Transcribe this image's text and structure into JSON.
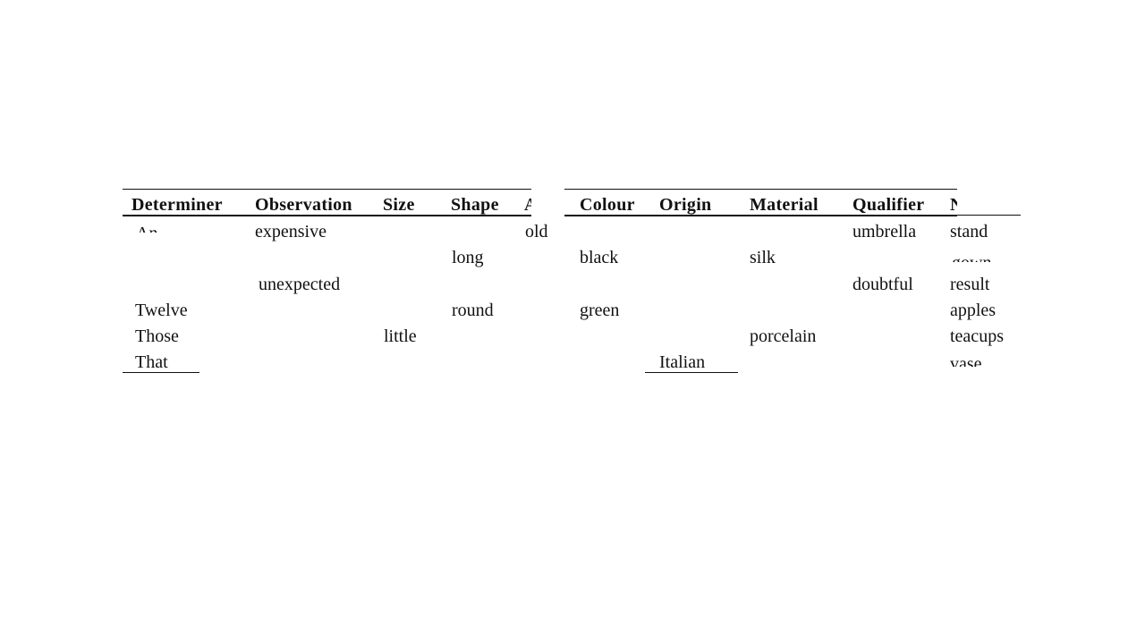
{
  "table": {
    "headers": {
      "determiner": "Determiner",
      "observation": "Observation",
      "size": "Size",
      "shape": "Shape",
      "age": "A",
      "colour": "Colour",
      "origin": "Origin",
      "material": "Material",
      "qualifier": "Qualifier",
      "noun": "N"
    },
    "rows": [
      {
        "determiner": "An",
        "observation": "expensive",
        "age": "old",
        "qualifier": "umbrella",
        "noun": "stand"
      },
      {
        "shape": "long",
        "colour": "black",
        "material": "silk",
        "noun": "gown"
      },
      {
        "observation": "unexpected",
        "qualifier": "doubtful",
        "noun": "result"
      },
      {
        "determiner": "Twelve",
        "shape": "round",
        "colour": "green",
        "noun": "apples"
      },
      {
        "determiner": "Those",
        "size": "little",
        "material": "porcelain",
        "noun": "teacups"
      },
      {
        "determiner": "That",
        "origin": "Italian",
        "noun": "vase"
      }
    ]
  }
}
